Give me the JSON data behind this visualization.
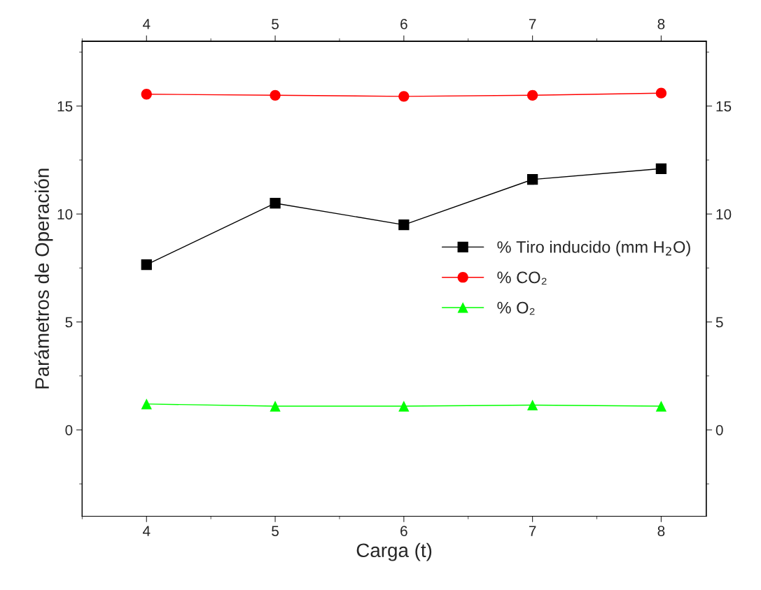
{
  "chart_data": {
    "type": "line",
    "xlabel": "Carga (t)",
    "ylabel": "Parámetros de Operación",
    "x": [
      4,
      5,
      6,
      7,
      8
    ],
    "series": [
      {
        "name": "% Tiro inducido (mm H$_{2}$O)",
        "color": "#000000",
        "marker": "square",
        "values": [
          7.65,
          10.5,
          9.5,
          11.6,
          12.1
        ]
      },
      {
        "name": "% CO₂",
        "color": "#ff0000",
        "marker": "circle",
        "values": [
          15.55,
          15.5,
          15.45,
          15.5,
          15.6
        ]
      },
      {
        "name": "% O₂",
        "color": "#00ff00",
        "marker": "triangle",
        "values": [
          1.2,
          1.1,
          1.1,
          1.15,
          1.1
        ]
      }
    ],
    "xlim": [
      3.5,
      8.35
    ],
    "xticks": [
      4,
      5,
      6,
      7,
      8
    ],
    "x2lim": [
      3.5,
      8.35
    ],
    "x2ticks": [
      4,
      5,
      6,
      7,
      8
    ],
    "ylim": [
      -4,
      18
    ],
    "yticks": [
      0,
      5,
      10,
      15
    ],
    "y2lim": [
      -4,
      18
    ],
    "y2ticks": [
      0,
      5,
      10,
      15
    ],
    "grid": false,
    "legend": "right",
    "line_style": "solid"
  }
}
